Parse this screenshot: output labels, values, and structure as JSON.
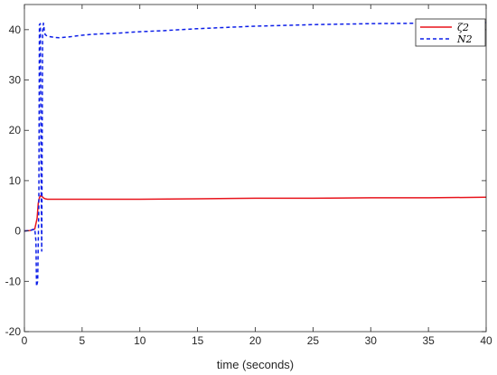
{
  "chart_data": {
    "type": "line",
    "title": "",
    "xlabel": "time (seconds)",
    "ylabel": "",
    "xlim": [
      0,
      40
    ],
    "ylim": [
      -20,
      45
    ],
    "xticks": [
      0,
      5,
      10,
      15,
      20,
      25,
      30,
      35,
      40
    ],
    "yticks": [
      -20,
      -10,
      0,
      10,
      20,
      30,
      40
    ],
    "grid": false,
    "legend_position": "top-right",
    "series": [
      {
        "name": "ζ2",
        "color": "#e8141c",
        "style": "solid",
        "x": [
          0,
          0.5,
          0.9,
          1.1,
          1.2,
          1.3,
          1.4,
          1.5,
          1.6,
          1.7,
          1.8,
          2,
          3,
          5,
          10,
          15,
          20,
          25,
          30,
          35,
          40
        ],
        "y": [
          0,
          0.1,
          0.4,
          2.5,
          5.5,
          6.6,
          7.0,
          6.9,
          6.7,
          6.5,
          6.4,
          6.3,
          6.3,
          6.3,
          6.3,
          6.4,
          6.5,
          6.5,
          6.6,
          6.6,
          6.7
        ]
      },
      {
        "name": "N2",
        "color": "#0c1ee8",
        "style": "dashed",
        "x": [
          0,
          0.5,
          0.9,
          1.0,
          1.05,
          1.15,
          1.25,
          1.3,
          1.38,
          1.45,
          1.5,
          1.58,
          1.65,
          1.72,
          1.8,
          2,
          2.5,
          3,
          4,
          5,
          6,
          8,
          10,
          12,
          15,
          18,
          20,
          25,
          30,
          35,
          40
        ],
        "y": [
          0,
          0.1,
          0.4,
          -2,
          -11,
          -10,
          5,
          41,
          41.2,
          10,
          -4,
          39.5,
          41.3,
          40,
          39,
          38.7,
          38.5,
          38.4,
          38.6,
          38.9,
          39.1,
          39.3,
          39.6,
          39.8,
          40.2,
          40.5,
          40.7,
          41.0,
          41.2,
          41.3,
          41.4
        ]
      }
    ]
  }
}
